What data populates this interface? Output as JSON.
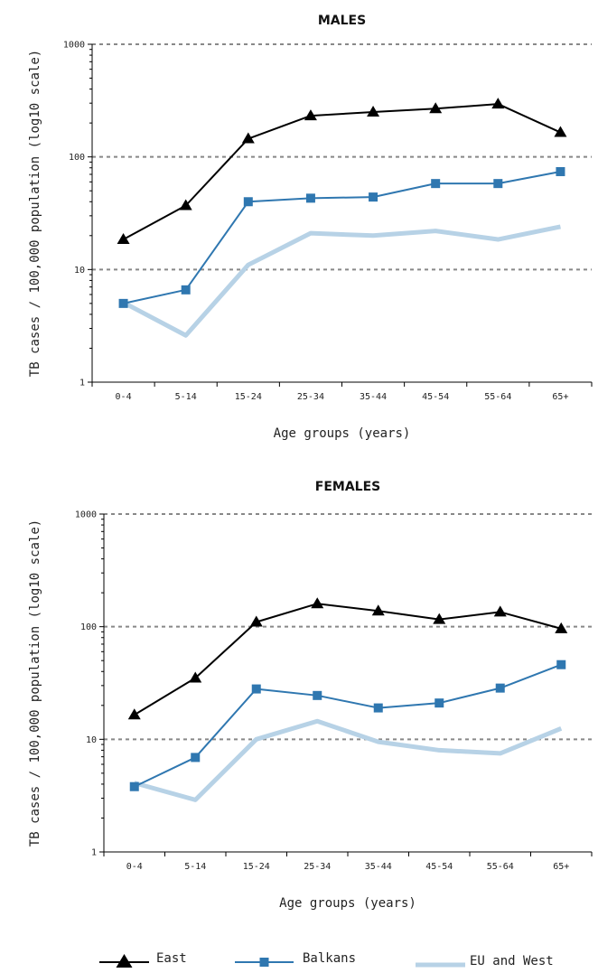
{
  "chart_data": [
    {
      "type": "line",
      "title": "MALES",
      "xlabel": "Age groups (years)",
      "ylabel": "TB cases / 100,000 population (log10 scale)",
      "yscale": "log10",
      "ylim": [
        1,
        1000
      ],
      "yticks": [
        "1",
        "10",
        "100",
        "1000"
      ],
      "categories": [
        "0-4",
        "5-14",
        "15-24",
        "25-34",
        "35-44",
        "45-54",
        "55-64",
        "65+"
      ],
      "series": [
        {
          "name": "East",
          "values": [
            18.5,
            37,
            145,
            232,
            250,
            268,
            295,
            165
          ]
        },
        {
          "name": "Balkans",
          "values": [
            5,
            6.6,
            40,
            43,
            44,
            58,
            58,
            74
          ]
        },
        {
          "name": "EU and West",
          "values": [
            5.1,
            2.6,
            11,
            21,
            20,
            22,
            18.5,
            24
          ]
        }
      ]
    },
    {
      "type": "line",
      "title": "FEMALES",
      "xlabel": "Age groups (years)",
      "ylabel": "TB cases / 100,000 population (log10 scale)",
      "yscale": "log10",
      "ylim": [
        1,
        1000
      ],
      "yticks": [
        "1",
        "10",
        "100",
        "1000"
      ],
      "categories": [
        "0-4",
        "5-14",
        "15-24",
        "25-34",
        "35-44",
        "45-54",
        "55-64",
        "65+"
      ],
      "series": [
        {
          "name": "East",
          "values": [
            16.5,
            35,
            110,
            160,
            138,
            116,
            135,
            96
          ]
        },
        {
          "name": "Balkans",
          "values": [
            3.8,
            6.9,
            28,
            24.5,
            19,
            21,
            28.5,
            46
          ]
        },
        {
          "name": "EU and West",
          "values": [
            4.1,
            2.9,
            10,
            14.5,
            9.5,
            8,
            7.5,
            12.5
          ]
        }
      ]
    }
  ],
  "legend": {
    "items": [
      {
        "label": "East",
        "color": "#000000",
        "marker": "triangle"
      },
      {
        "label": "Balkans",
        "color": "#2f77b0",
        "marker": "square"
      },
      {
        "label": "EU and West",
        "color": "#b7d2e6",
        "marker": "none"
      }
    ]
  },
  "colors": {
    "east": "#000000",
    "balkans": "#2f77b0",
    "eu_west": "#b7d2e6",
    "grid": "#888888"
  },
  "grid": "dashed horizontal at decades"
}
